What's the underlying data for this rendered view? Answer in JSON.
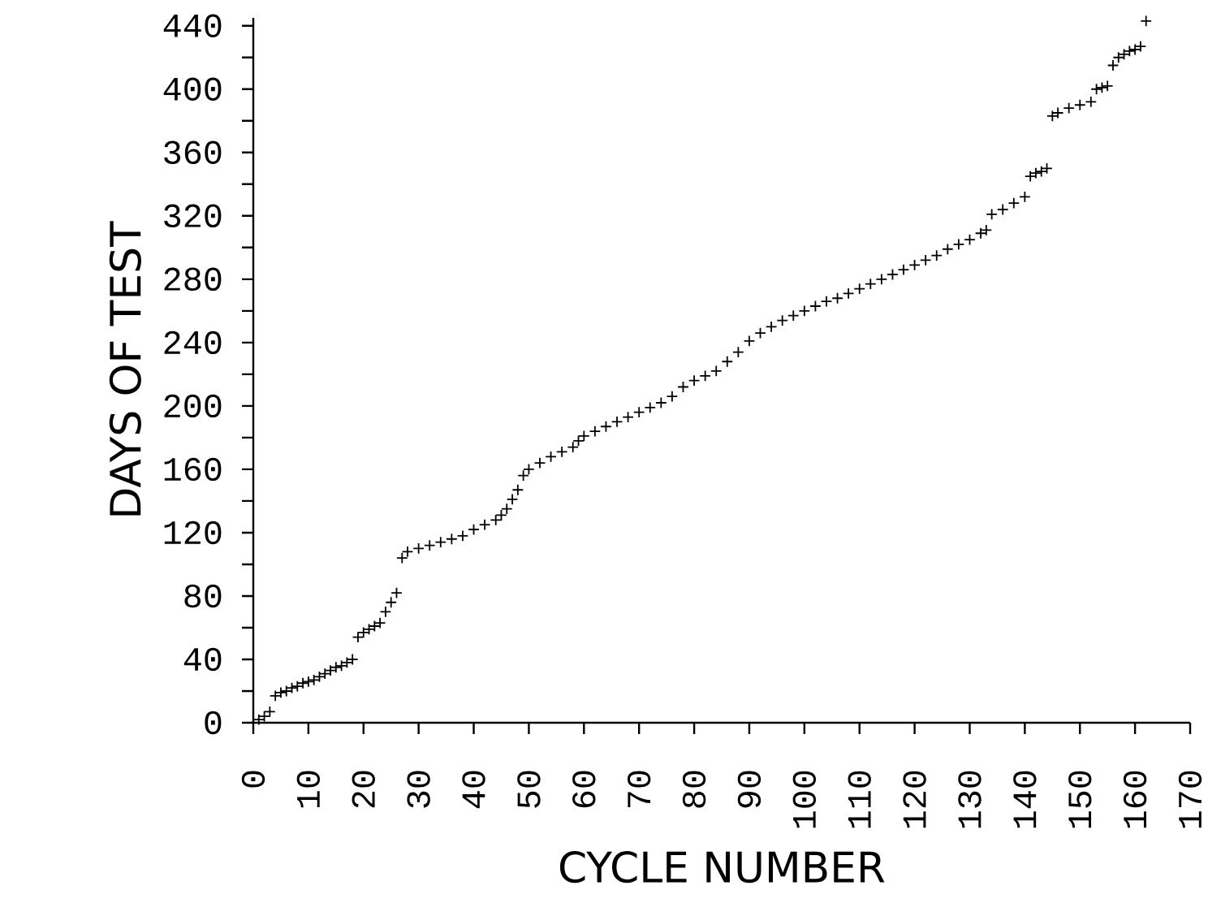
{
  "chart_data": {
    "type": "scatter",
    "xlabel": "CYCLE NUMBER",
    "ylabel": "DAYS OF TEST",
    "color": "#000000",
    "marker": "cross",
    "x": [
      1,
      2,
      3,
      4,
      5,
      6,
      7,
      8,
      9,
      10,
      11,
      12,
      13,
      14,
      15,
      16,
      17,
      18,
      19,
      20,
      21,
      22,
      23,
      24,
      25,
      26,
      27,
      28,
      30,
      32,
      34,
      36,
      38,
      40,
      42,
      44,
      45,
      46,
      47,
      48,
      49,
      50,
      52,
      54,
      56,
      58,
      59,
      60,
      62,
      64,
      66,
      68,
      70,
      72,
      74,
      76,
      78,
      80,
      82,
      84,
      86,
      88,
      90,
      92,
      94,
      96,
      98,
      100,
      102,
      104,
      106,
      108,
      110,
      112,
      114,
      116,
      118,
      120,
      122,
      124,
      126,
      128,
      130,
      132,
      133,
      134,
      136,
      138,
      140,
      141,
      142,
      143,
      144,
      145,
      146,
      148,
      150,
      152,
      153,
      154,
      155,
      156,
      157,
      158,
      159,
      160,
      161,
      162
    ],
    "values": [
      2,
      4,
      7,
      17,
      19,
      20,
      22,
      23,
      25,
      26,
      27,
      29,
      31,
      33,
      35,
      36,
      38,
      40,
      54,
      57,
      59,
      61,
      63,
      70,
      76,
      82,
      104,
      108,
      110,
      112,
      114,
      116,
      118,
      122,
      125,
      128,
      131,
      135,
      141,
      147,
      156,
      160,
      164,
      168,
      171,
      174,
      178,
      181,
      184,
      187,
      190,
      193,
      196,
      199,
      202,
      206,
      212,
      216,
      219,
      222,
      228,
      234,
      241,
      246,
      250,
      254,
      257,
      260,
      263,
      266,
      268,
      271,
      274,
      277,
      280,
      283,
      286,
      289,
      292,
      295,
      299,
      302,
      305,
      309,
      311,
      321,
      324,
      328,
      332,
      345,
      347,
      348,
      350,
      383,
      385,
      388,
      390,
      392,
      400,
      401,
      402,
      415,
      420,
      422,
      424,
      425,
      427,
      443
    ],
    "xlim": [
      0,
      170
    ],
    "ylim": [
      0,
      445
    ],
    "xticks": [
      0,
      10,
      20,
      30,
      40,
      50,
      60,
      70,
      80,
      90,
      100,
      110,
      120,
      130,
      140,
      150,
      160,
      170
    ],
    "yticks": [
      0,
      {
        "value": 20,
        "label": null
      },
      40,
      {
        "value": 60,
        "label": null
      },
      80,
      {
        "value": 100,
        "label": null
      },
      120,
      {
        "value": 140,
        "label": null
      },
      160,
      {
        "value": 180,
        "label": null
      },
      200,
      {
        "value": 220,
        "label": null
      },
      240,
      {
        "value": 260,
        "label": null
      },
      280,
      {
        "value": 300,
        "label": null
      },
      320,
      {
        "value": 340,
        "label": null
      },
      360,
      {
        "value": 380,
        "label": null
      },
      400,
      {
        "value": 420,
        "label": null
      },
      440
    ]
  }
}
